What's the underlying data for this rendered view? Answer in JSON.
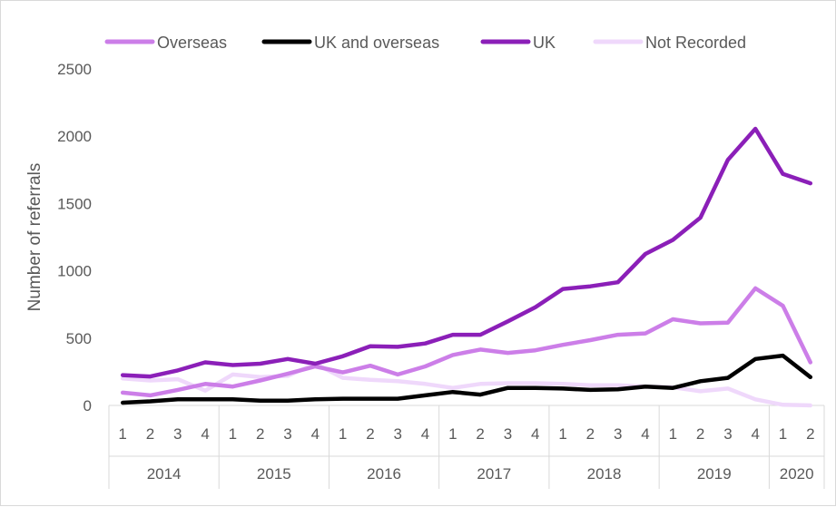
{
  "chart_data": {
    "type": "line",
    "ylabel": "Number of referrals",
    "xlabel": "",
    "ylim": [
      0,
      2500
    ],
    "yticks": [
      0,
      500,
      1000,
      1500,
      2000,
      2500
    ],
    "grid": false,
    "legend_position": "top",
    "categories": [
      "1",
      "2",
      "3",
      "4",
      "1",
      "2",
      "3",
      "4",
      "1",
      "2",
      "3",
      "4",
      "1",
      "2",
      "3",
      "4",
      "1",
      "2",
      "3",
      "4",
      "1",
      "2",
      "3",
      "4",
      "1",
      "2"
    ],
    "years": [
      {
        "label": "2014",
        "quarters": 4
      },
      {
        "label": "2015",
        "quarters": 4
      },
      {
        "label": "2016",
        "quarters": 4
      },
      {
        "label": "2017",
        "quarters": 4
      },
      {
        "label": "2018",
        "quarters": 4
      },
      {
        "label": "2019",
        "quarters": 4
      },
      {
        "label": "2020",
        "quarters": 2
      }
    ],
    "series": [
      {
        "name": "Overseas",
        "color": "#cc7ee8",
        "values": [
          95,
          75,
          115,
          160,
          140,
          185,
          235,
          290,
          245,
          295,
          230,
          290,
          375,
          415,
          390,
          410,
          450,
          485,
          525,
          535,
          640,
          610,
          615,
          870,
          740,
          320
        ]
      },
      {
        "name": "UK and overseas",
        "color": "#000000",
        "values": [
          20,
          30,
          45,
          45,
          45,
          35,
          35,
          45,
          50,
          50,
          50,
          75,
          100,
          80,
          130,
          130,
          125,
          115,
          120,
          140,
          130,
          180,
          205,
          345,
          370,
          210
        ]
      },
      {
        "name": "UK",
        "color": "#8b1fb8",
        "values": [
          225,
          215,
          260,
          320,
          300,
          310,
          345,
          310,
          365,
          440,
          435,
          460,
          525,
          525,
          625,
          730,
          865,
          885,
          915,
          1125,
          1230,
          1395,
          1825,
          2055,
          1720,
          1650
        ]
      },
      {
        "name": "Not Recorded",
        "color": "#efd8fb",
        "values": [
          200,
          185,
          195,
          110,
          230,
          210,
          220,
          310,
          205,
          190,
          180,
          160,
          130,
          160,
          165,
          165,
          160,
          150,
          150,
          140,
          135,
          105,
          125,
          45,
          5,
          0
        ]
      }
    ]
  }
}
